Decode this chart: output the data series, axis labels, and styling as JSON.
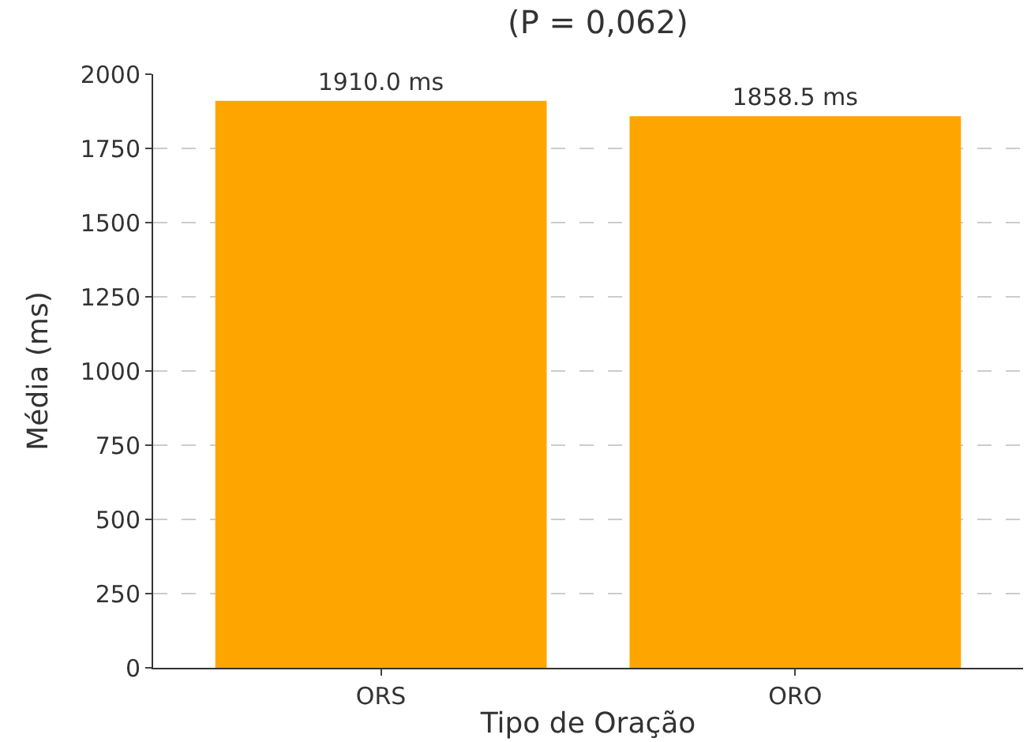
{
  "chart_data": {
    "type": "bar",
    "title": "(P = 0,062)",
    "xlabel": "Tipo de Oração",
    "ylabel": "Média (ms)",
    "categories": [
      "ORS",
      "ORO"
    ],
    "values": [
      1910.0,
      1858.5
    ],
    "value_labels": [
      "1910.0 ms",
      "1858.5 ms"
    ],
    "color": "#ffa500",
    "ylim": [
      0,
      2000
    ],
    "yticks": [
      0,
      250,
      500,
      750,
      1000,
      1250,
      1500,
      1750,
      2000
    ],
    "grid": "y"
  }
}
